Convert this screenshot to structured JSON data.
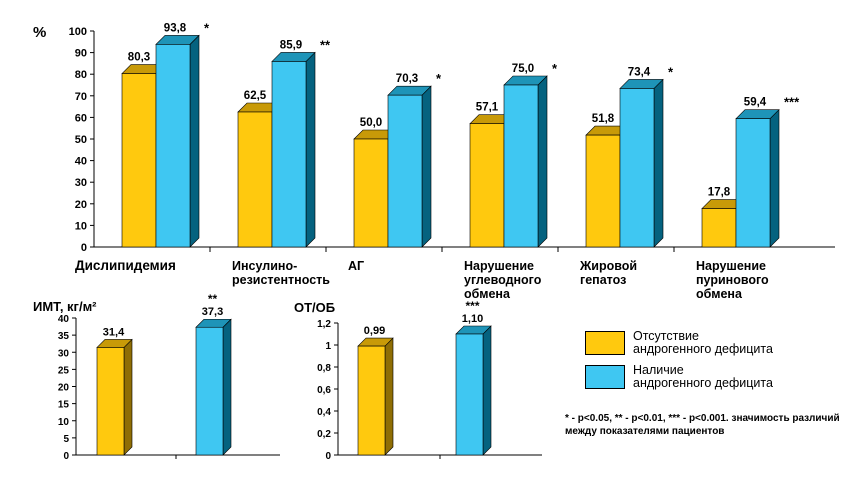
{
  "colors": {
    "yellow": "#FFC90E",
    "yellow_side": "#8F6E05",
    "yellow_top": "#C89A08",
    "blue": "#3FC7F2",
    "blue_side": "#05627F",
    "blue_top": "#1E94B8"
  },
  "legend": {
    "absent": "Отсутствие\nандрогенного дефицита",
    "present": "Наличие\nандрогенного дефицита"
  },
  "note": {
    "text": "* - p<0.05,  ** - p<0.01, *** - p<0.001. значимость различий между показателями пациентов"
  },
  "chart_data": [
    {
      "type": "bar",
      "ylabel": "%",
      "ylim": [
        0,
        100
      ],
      "yticks": [
        "0",
        "10",
        "20",
        "30",
        "40",
        "50",
        "60",
        "70",
        "80",
        "90",
        "100"
      ],
      "categories": [
        "Дислипидемия",
        "Инсулино-\nрезистентность",
        "АГ",
        "Нарушение\nуглеводного\nобмена",
        "Жировой\nгепатоз",
        "Нарушение\nпуринового\nобмена"
      ],
      "series": [
        {
          "name": "Отсутствие андрогенного дефицита",
          "values": [
            80.3,
            62.5,
            50.0,
            57.1,
            51.8,
            17.8
          ],
          "labels": [
            "80,3",
            "62,5",
            "50,0",
            "57,1",
            "51,8",
            "17,8"
          ]
        },
        {
          "name": "Наличие андрогенного дефицита",
          "values": [
            93.8,
            85.9,
            70.3,
            75.0,
            73.4,
            59.4
          ],
          "labels": [
            "93,8",
            "85,9",
            "70,3",
            "75,0",
            "73,4",
            "59,4"
          ],
          "stars": [
            "*",
            "**",
            "*",
            "*",
            "*",
            "***"
          ]
        }
      ]
    },
    {
      "type": "bar",
      "ylabel": "ИМТ, кг/м²",
      "ylim": [
        0,
        40
      ],
      "yticks": [
        "0",
        "5",
        "10",
        "15",
        "20",
        "25",
        "30",
        "35",
        "40"
      ],
      "categories": [
        "Отсутствие андрогенного дефицита",
        "Наличие андрогенного дефицита"
      ],
      "values": [
        31.4,
        37.3
      ],
      "labels": [
        "31,4",
        "37,3"
      ],
      "stars": [
        "",
        "**"
      ]
    },
    {
      "type": "bar",
      "ylabel": "ОТ/ОБ",
      "ylim": [
        0,
        1.2
      ],
      "yticks": [
        "0",
        "0,2",
        "0,4",
        "0,6",
        "0,8",
        "1",
        "1,2"
      ],
      "categories": [
        "Отсутствие андрогенного дефицита",
        "Наличие андрогенного дефицита"
      ],
      "values": [
        0.99,
        1.1
      ],
      "labels": [
        "0,99",
        "1,10"
      ],
      "stars": [
        "",
        "***"
      ]
    }
  ]
}
